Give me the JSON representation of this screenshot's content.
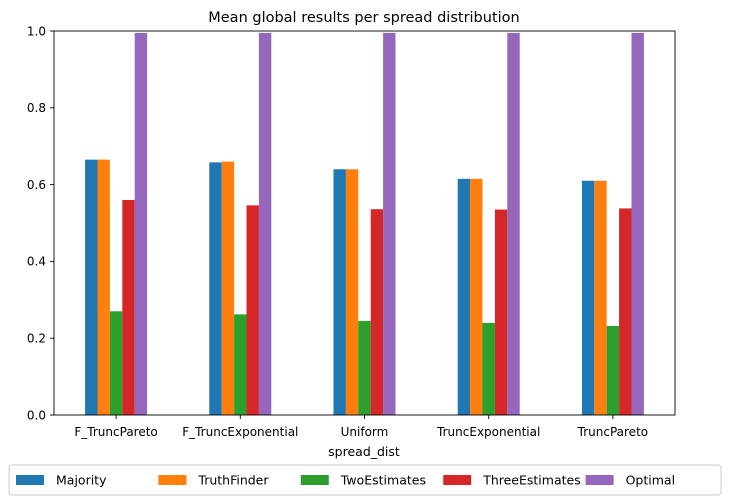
{
  "chart_data": {
    "type": "bar",
    "title": "Mean global results per spread distribution",
    "xlabel": "spread_dist",
    "ylabel": "",
    "ylim": [
      0,
      1.0
    ],
    "yticks": [
      "0.0",
      "0.2",
      "0.4",
      "0.6",
      "0.8",
      "1.0"
    ],
    "categories": [
      "F_TruncPareto",
      "F_TruncExponential",
      "Uniform",
      "TruncExponential",
      "TruncPareto"
    ],
    "legend_position": "bottom",
    "grid": false,
    "series": [
      {
        "name": "Majority",
        "color": "#1f77b4",
        "values": [
          0.665,
          0.658,
          0.64,
          0.615,
          0.61
        ]
      },
      {
        "name": "TruthFinder",
        "color": "#ff7f0e",
        "values": [
          0.665,
          0.66,
          0.64,
          0.615,
          0.61
        ]
      },
      {
        "name": "TwoEstimates",
        "color": "#2ca02c",
        "values": [
          0.27,
          0.262,
          0.245,
          0.24,
          0.232
        ]
      },
      {
        "name": "ThreeEstimates",
        "color": "#d62728",
        "values": [
          0.56,
          0.546,
          0.536,
          0.535,
          0.538
        ]
      },
      {
        "name": "Optimal",
        "color": "#9467bd",
        "values": [
          0.995,
          0.995,
          0.995,
          0.995,
          0.995
        ]
      }
    ]
  }
}
